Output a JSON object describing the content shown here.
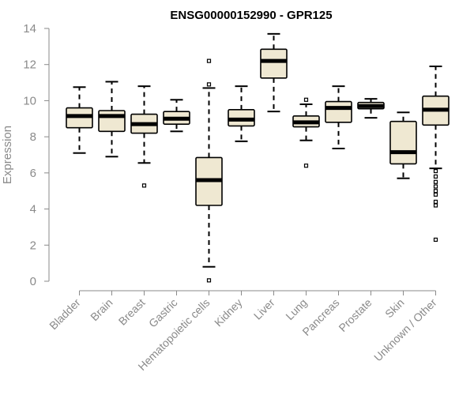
{
  "chart_data": {
    "type": "box",
    "title": "ENSG00000152990 - GPR125",
    "xlabel": "",
    "ylabel": "Expression",
    "ylim": [
      0,
      14
    ],
    "yticks": [
      0,
      2,
      4,
      6,
      8,
      10,
      12,
      14
    ],
    "grid": false,
    "box_fill": "#efe8d2",
    "box_stroke": "#000000",
    "categories": [
      "Bladder",
      "Brain",
      "Breast",
      "Gastric",
      "Hematopoietic cells",
      "Kidney",
      "Liver",
      "Lung",
      "Pancreas",
      "Prostate",
      "Skin",
      "Unknown / Other"
    ],
    "boxes": [
      {
        "whisker_low": 7.1,
        "q1": 8.5,
        "median": 9.15,
        "q3": 9.6,
        "whisker_high": 10.75,
        "outliers": []
      },
      {
        "whisker_low": 6.9,
        "q1": 8.3,
        "median": 9.15,
        "q3": 9.45,
        "whisker_high": 11.05,
        "outliers": []
      },
      {
        "whisker_low": 6.55,
        "q1": 8.2,
        "median": 8.7,
        "q3": 9.25,
        "whisker_high": 10.8,
        "outliers": [
          5.3
        ]
      },
      {
        "whisker_low": 8.3,
        "q1": 8.7,
        "median": 9.0,
        "q3": 9.4,
        "whisker_high": 10.05,
        "outliers": []
      },
      {
        "whisker_low": 0.8,
        "q1": 4.2,
        "median": 5.6,
        "q3": 6.85,
        "whisker_high": 10.7,
        "outliers": [
          12.2,
          10.9,
          0.05
        ]
      },
      {
        "whisker_low": 7.75,
        "q1": 8.6,
        "median": 8.95,
        "q3": 9.5,
        "whisker_high": 10.8,
        "outliers": []
      },
      {
        "whisker_low": 9.4,
        "q1": 11.25,
        "median": 12.2,
        "q3": 12.85,
        "whisker_high": 13.7,
        "outliers": []
      },
      {
        "whisker_low": 7.8,
        "q1": 8.55,
        "median": 8.8,
        "q3": 9.15,
        "whisker_high": 9.8,
        "outliers": [
          10.05,
          6.4
        ]
      },
      {
        "whisker_low": 7.35,
        "q1": 8.8,
        "median": 9.6,
        "q3": 9.95,
        "whisker_high": 10.8,
        "outliers": []
      },
      {
        "whisker_low": 9.05,
        "q1": 9.55,
        "median": 9.7,
        "q3": 9.9,
        "whisker_high": 10.1,
        "outliers": []
      },
      {
        "whisker_low": 5.7,
        "q1": 6.5,
        "median": 7.15,
        "q3": 8.85,
        "whisker_high": 9.35,
        "outliers": []
      },
      {
        "whisker_low": 6.25,
        "q1": 8.65,
        "median": 9.5,
        "q3": 10.25,
        "whisker_high": 11.9,
        "outliers": [
          6.1,
          5.8,
          5.5,
          5.25,
          5.0,
          4.8,
          4.4,
          4.2,
          2.3
        ]
      }
    ]
  }
}
